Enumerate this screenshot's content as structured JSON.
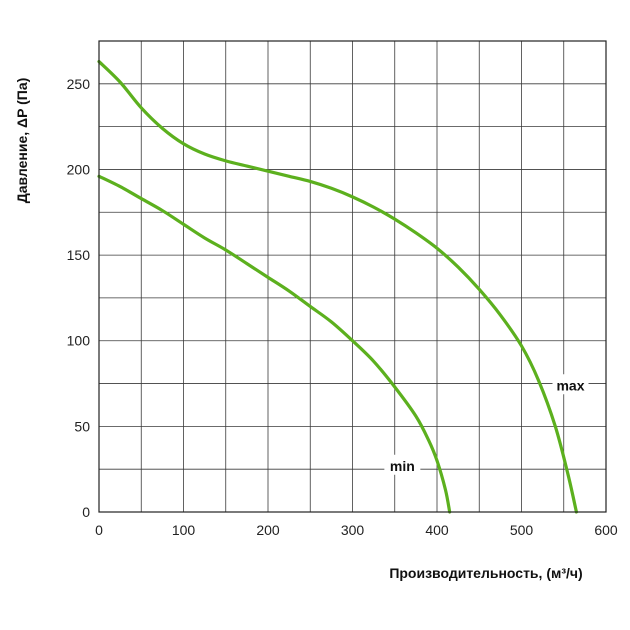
{
  "chart_data": {
    "type": "line",
    "title": "",
    "xlabel": "Производительность, (м³/ч)",
    "ylabel": "Давление, ΔP (Па)",
    "xlim": [
      0,
      600
    ],
    "ylim": [
      0,
      275
    ],
    "x_ticks": [
      0,
      100,
      200,
      300,
      400,
      500,
      600
    ],
    "y_ticks": [
      0,
      50,
      100,
      150,
      200,
      250
    ],
    "x_grid_step": 50,
    "y_grid_step": 25,
    "grid": true,
    "legend": "none",
    "series": [
      {
        "name": "max",
        "color": "#5cb01e",
        "x": [
          0,
          25,
          50,
          75,
          100,
          125,
          150,
          175,
          200,
          225,
          250,
          275,
          300,
          325,
          350,
          375,
          400,
          425,
          450,
          475,
          500,
          520,
          540,
          555,
          565
        ],
        "y": [
          263,
          251,
          236,
          224,
          215,
          209,
          205,
          202,
          199,
          196,
          193,
          189,
          184,
          178,
          171,
          163,
          154,
          143,
          130,
          115,
          97,
          77,
          50,
          22,
          0
        ]
      },
      {
        "name": "min",
        "color": "#5cb01e",
        "x": [
          0,
          25,
          50,
          75,
          100,
          125,
          150,
          175,
          200,
          225,
          250,
          275,
          300,
          325,
          350,
          375,
          390,
          400,
          410,
          415
        ],
        "y": [
          196,
          190,
          183,
          176,
          168,
          160,
          153,
          145,
          137,
          129,
          120,
          111,
          100,
          88,
          73,
          56,
          42,
          30,
          13,
          0
        ]
      }
    ],
    "annotations": [
      {
        "text": "max",
        "series": "max",
        "x": 558,
        "y": 74
      },
      {
        "text": "min",
        "series": "min",
        "x": 359,
        "y": 27
      }
    ]
  }
}
